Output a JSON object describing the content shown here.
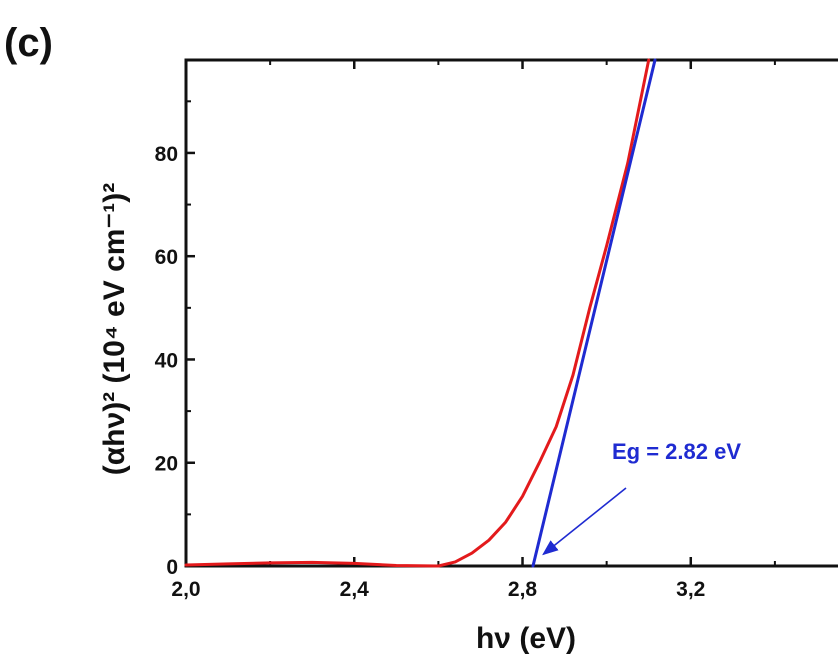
{
  "panel_label": "(c)",
  "chart_data": {
    "type": "line",
    "xlabel": "hν (eV)",
    "ylabel": "(αhν)² (10⁴ eV cm⁻¹)²",
    "xlim": [
      2.0,
      3.55
    ],
    "ylim": [
      0,
      98
    ],
    "x_ticks": [
      2.0,
      2.4,
      2.8,
      3.2
    ],
    "x_tick_labels": [
      "2,0",
      "2,4",
      "2,8",
      "3,2"
    ],
    "y_ticks": [
      0,
      20,
      40,
      60,
      80
    ],
    "y_tick_labels": [
      "0",
      "20",
      "40",
      "60",
      "80"
    ],
    "grid": false,
    "series": [
      {
        "kind": "data",
        "color": "#e31a1c",
        "x": [
          2.0,
          2.1,
          2.2,
          2.3,
          2.4,
          2.5,
          2.6,
          2.64,
          2.68,
          2.72,
          2.76,
          2.8,
          2.84,
          2.88,
          2.92,
          2.96,
          3.0,
          3.05,
          3.1
        ],
        "y": [
          0.2,
          0.4,
          0.6,
          0.7,
          0.5,
          0.1,
          0.0,
          0.8,
          2.5,
          5.0,
          8.5,
          13.5,
          20.0,
          27.0,
          37.0,
          50.0,
          62.0,
          78.0,
          98.0
        ]
      },
      {
        "kind": "linear-fit",
        "color": "#1f2bd1",
        "x": [
          2.825,
          3.115
        ],
        "y": [
          0,
          98
        ]
      }
    ],
    "annotations": [
      {
        "text": "Eg = 2.82 eV",
        "color": "#1f2bd1",
        "points_to": {
          "x": 2.84,
          "y": 1.5
        }
      }
    ]
  }
}
